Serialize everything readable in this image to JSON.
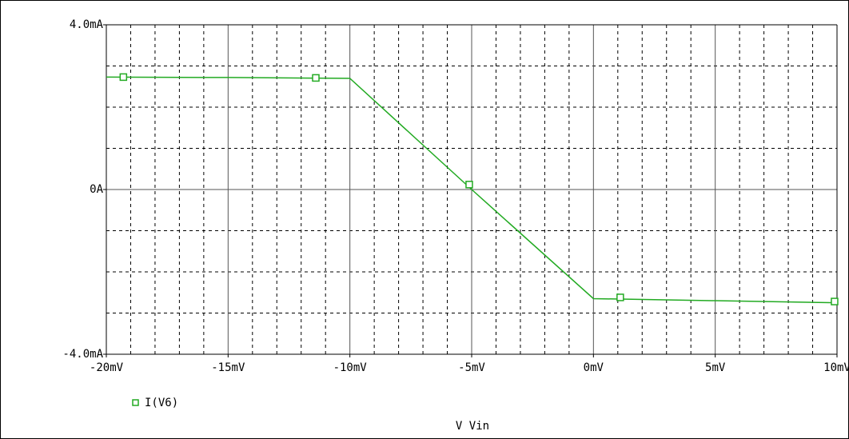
{
  "chart_data": {
    "type": "line",
    "xlabel": "V Vin",
    "ylabel": "",
    "xlim": [
      -20,
      10
    ],
    "ylim": [
      -4.0,
      4.0
    ],
    "x_tick_labels": [
      "-20mV",
      "-15mV",
      "-10mV",
      "-5mV",
      "0mV",
      "5mV",
      "10mV"
    ],
    "x_ticks": [
      -20,
      -15,
      -10,
      -5,
      0,
      5,
      10
    ],
    "y_tick_labels": [
      "-4.0mA",
      "0A",
      "4.0mA"
    ],
    "y_ticks": [
      -4.0,
      0,
      4.0
    ],
    "grid": true,
    "legend_position": "bottom-left",
    "series": [
      {
        "name": "I(V6)",
        "color": "#22aa22",
        "marker": "square",
        "x": [
          -20,
          -15,
          -10,
          -5,
          0,
          5,
          10
        ],
        "y": [
          2.73,
          2.72,
          2.7,
          0.0,
          -2.65,
          -2.7,
          -2.75
        ],
        "marker_x": [
          -19.3,
          -11.4,
          -5.1,
          1.1,
          9.9
        ],
        "marker_y": [
          2.73,
          2.71,
          0.12,
          -2.62,
          -2.72
        ]
      }
    ]
  }
}
